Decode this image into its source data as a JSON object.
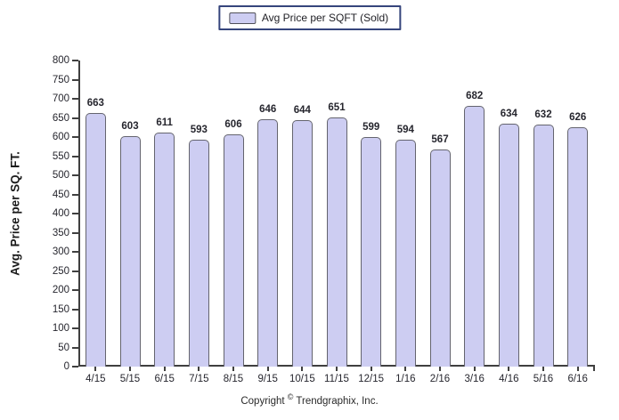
{
  "chart_data": {
    "type": "bar",
    "title": "",
    "legend_label": "Avg Price per SQFT (Sold)",
    "legend_position": "top-center",
    "categories": [
      "4/15",
      "5/15",
      "6/15",
      "7/15",
      "8/15",
      "9/15",
      "10/15",
      "11/15",
      "12/15",
      "1/16",
      "2/16",
      "3/16",
      "4/16",
      "5/16",
      "6/16"
    ],
    "values": [
      663,
      603,
      611,
      593,
      606,
      646,
      644,
      651,
      599,
      594,
      567,
      682,
      634,
      632,
      626
    ],
    "xlabel": "",
    "ylabel": "Avg. Price per SQ. FT.",
    "ylim": [
      0,
      800
    ],
    "ytick_step": 50,
    "grid": false,
    "bar_fill": "#cdcdf2",
    "bar_border": "#64646e",
    "axis_color": "#3f3f3f",
    "legend_border": "#36457c"
  },
  "footer": {
    "pre": "Copyright ",
    "symbol": "©",
    "post": " Trendgraphix, Inc."
  }
}
